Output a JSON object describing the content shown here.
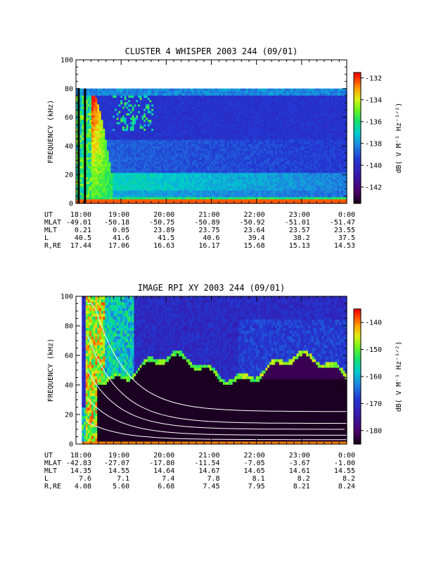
{
  "chart_data": [
    {
      "type": "heatmap",
      "title": "CLUSTER 4 WHISPER 2003 244 (09/01)",
      "ylabel": "FREQUENCY (kHz)",
      "ylim": [
        0,
        100
      ],
      "y_ticks": [
        "0",
        "20",
        "40",
        "60",
        "80",
        "100"
      ],
      "x_ticks": [
        "18:00",
        "19:00",
        "20:00",
        "21:00",
        "22:00",
        "23:00",
        "0:00"
      ],
      "xlim": [
        "18:00",
        "0:00"
      ],
      "data_ceiling_khz": 80,
      "colorbar": {
        "label": "dB( V M⁻¹ Hz⁻¹ᐟ²)",
        "range": [
          -143.5,
          -131.5
        ],
        "ticks": [
          "-132",
          "-134",
          "-136",
          "-138",
          "-140",
          "-142"
        ],
        "tick_values": [
          -132,
          -134,
          -136,
          -138,
          -140,
          -142
        ]
      },
      "ephemeris": {
        "labels": [
          "UT",
          "MLAT",
          "MLT",
          "L",
          "R,RE"
        ],
        "rows": [
          [
            "18:00",
            "19:00",
            "20:00",
            "21:00",
            "22:00",
            "23:00",
            "0:00"
          ],
          [
            "-49.01",
            "-50.18",
            "-50.75",
            "-50.89",
            "-50.92",
            "-51.01",
            "-51.47"
          ],
          [
            "0.21",
            "0.05",
            "23.89",
            "23.75",
            "23.64",
            "23.57",
            "23.55"
          ],
          [
            "40.5",
            "41.6",
            "41.5",
            "40.6",
            "39.4",
            "38.2",
            "37.5"
          ],
          [
            "17.44",
            "17.06",
            "16.63",
            "16.17",
            "15.68",
            "15.13",
            "14.53"
          ]
        ]
      }
    },
    {
      "type": "heatmap",
      "title": "IMAGE RPI XY 2003 244 (09/01)",
      "ylabel": "FREQUENCY (kHz)",
      "ylim": [
        0,
        100
      ],
      "y_ticks": [
        "0",
        "20",
        "40",
        "60",
        "80",
        "100"
      ],
      "x_ticks": [
        "18:00",
        "19:00",
        "20:00",
        "21:00",
        "22:00",
        "23:00",
        "0:00"
      ],
      "xlim": [
        "18:00",
        "0:00"
      ],
      "colorbar": {
        "label": "dB( V M⁻¹ Hz⁻¹ᐟ²)",
        "range": [
          -185,
          -135
        ],
        "ticks": [
          "-140",
          "-150",
          "-160",
          "-170",
          "-180"
        ],
        "tick_values": [
          -140,
          -150,
          -160,
          -170,
          -180
        ]
      },
      "ephemeris": {
        "labels": [
          "UT",
          "MLAT",
          "MLT",
          "L",
          "R,RE"
        ],
        "rows": [
          [
            "18:00",
            "19:00",
            "20:00",
            "21:00",
            "22:00",
            "23:00",
            "0:00"
          ],
          [
            "-42.83",
            "-27.07",
            "-17.80",
            "-11.54",
            "-7.05",
            "-3.67",
            "-1.00"
          ],
          [
            "14.35",
            "14.55",
            "14.64",
            "14.67",
            "14.65",
            "14.61",
            "14.55"
          ],
          [
            "7.6",
            "7.1",
            "7.4",
            "7.8",
            "8.1",
            "8.2",
            "8.2"
          ],
          [
            "4.08",
            "5.60",
            "6.68",
            "7.45",
            "7.95",
            "8.21",
            "8.24"
          ]
        ]
      }
    }
  ]
}
